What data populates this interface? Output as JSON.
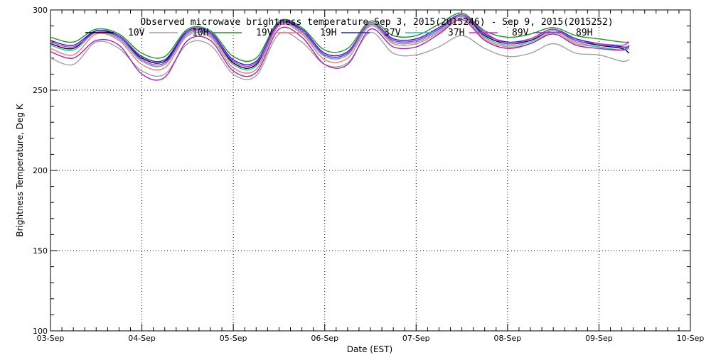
{
  "chart_data": {
    "type": "line",
    "title": "Observed microwave brightness temperature Sep  3, 2015(2015246) - Sep  9, 2015(2015252)",
    "xlabel": "Date (EST)",
    "ylabel": "Brightness Temperature, Deg K",
    "ylim": [
      100,
      300
    ],
    "yticks": [
      100,
      150,
      200,
      250,
      300
    ],
    "xlim": [
      0,
      7
    ],
    "xticks": [
      {
        "value": 0,
        "label": "03-Sep"
      },
      {
        "value": 1,
        "label": "04-Sep"
      },
      {
        "value": 2,
        "label": "05-Sep"
      },
      {
        "value": 3,
        "label": "06-Sep"
      },
      {
        "value": 4,
        "label": "07-Sep"
      },
      {
        "value": 5,
        "label": "08-Sep"
      },
      {
        "value": 6,
        "label": "09-Sep"
      },
      {
        "value": 7,
        "label": "10-Sep"
      }
    ],
    "grid": true,
    "legend": "top-center",
    "x": [
      0.0,
      0.25,
      0.5,
      0.75,
      1.0,
      1.25,
      1.5,
      1.75,
      2.0,
      2.25,
      2.5,
      2.75,
      3.0,
      3.25,
      3.5,
      3.75,
      4.0,
      4.25,
      4.5,
      4.75,
      5.0,
      5.25,
      5.5,
      5.75,
      6.0,
      6.25,
      6.33
    ],
    "series": [
      {
        "name": "10V",
        "color": "#000000",
        "values": [
          279,
          276,
          287,
          283,
          270,
          268,
          286,
          285,
          267,
          266,
          292,
          287,
          272,
          273,
          291,
          281,
          281,
          288,
          296,
          284,
          279,
          281,
          287,
          281,
          278,
          276,
          273
        ]
      },
      {
        "name": "10H",
        "color": "#a0a0a0",
        "values": [
          270,
          266,
          280,
          276,
          262,
          260,
          279,
          278,
          260,
          259,
          285,
          280,
          266,
          267,
          286,
          273,
          272,
          277,
          284,
          276,
          271,
          273,
          279,
          273,
          272,
          268,
          269
        ]
      },
      {
        "name": "19V",
        "color": "#1a9a1a",
        "values": [
          283,
          280,
          288,
          285,
          273,
          271,
          288,
          287,
          271,
          270,
          293,
          289,
          275,
          276,
          293,
          284,
          284,
          291,
          298,
          287,
          283,
          285,
          289,
          284,
          282,
          280,
          280
        ]
      },
      {
        "name": "19H",
        "color": "#ff7070",
        "values": [
          276,
          272,
          285,
          281,
          266,
          264,
          284,
          283,
          264,
          263,
          290,
          285,
          269,
          270,
          290,
          279,
          279,
          286,
          295,
          282,
          277,
          279,
          286,
          279,
          277,
          275,
          277
        ]
      },
      {
        "name": "37V",
        "color": "#2020e0",
        "values": [
          281,
          278,
          287,
          284,
          271,
          269,
          287,
          286,
          269,
          268,
          292,
          288,
          273,
          274,
          292,
          282,
          282,
          289,
          297,
          285,
          280,
          282,
          288,
          282,
          279,
          277,
          277
        ]
      },
      {
        "name": "37H",
        "color": "#20c0c0",
        "values": [
          278,
          275,
          286,
          282,
          268,
          266,
          285,
          284,
          266,
          265,
          291,
          286,
          271,
          272,
          291,
          280,
          280,
          287,
          296,
          283,
          278,
          280,
          287,
          280,
          277,
          275,
          276
        ]
      },
      {
        "name": "89V",
        "color": "#e020e0",
        "values": [
          280,
          277,
          286,
          283,
          269,
          267,
          286,
          285,
          268,
          267,
          291,
          287,
          272,
          273,
          292,
          281,
          281,
          288,
          297,
          286,
          279,
          282,
          288,
          281,
          279,
          278,
          280
        ]
      },
      {
        "name": "89H",
        "color": "#a020c0",
        "values": [
          274,
          270,
          281,
          278,
          260,
          258,
          281,
          281,
          262,
          261,
          288,
          283,
          266,
          266,
          288,
          277,
          277,
          285,
          294,
          281,
          276,
          279,
          285,
          278,
          276,
          275,
          278
        ]
      }
    ]
  }
}
